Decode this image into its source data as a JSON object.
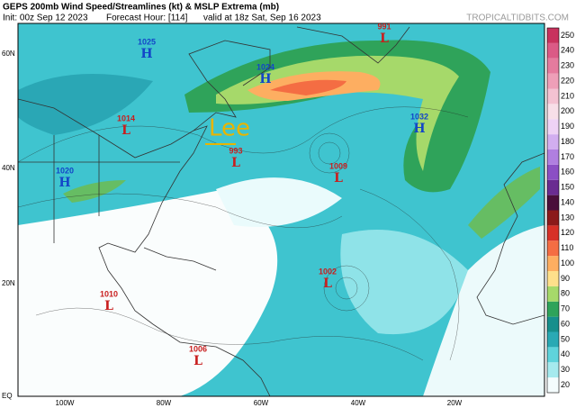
{
  "header": {
    "title": "GEPS 200mb Wind Speed/Streamlines (kt) & MSLP Extrema (mb)",
    "init": "Init: 00z Sep 12 2023",
    "forecast_hour": "Forecast Hour: [114]",
    "valid": "valid at 18z Sat, Sep 16 2023",
    "site": "TROPICALTIDBITS.COM"
  },
  "annotation": "Lee",
  "latitude_labels": [
    "60N",
    "40N",
    "20N",
    "EQ"
  ],
  "longitude_labels": [
    "100W",
    "80W",
    "60W",
    "40W",
    "20W"
  ],
  "colorbar": {
    "ticks": [
      20,
      30,
      40,
      50,
      60,
      70,
      80,
      90,
      100,
      110,
      120,
      130,
      140,
      150,
      160,
      170,
      180,
      190,
      200,
      210,
      220,
      230,
      240,
      250
    ]
  },
  "pressure_centers": [
    {
      "label": "H",
      "value": 1025
    },
    {
      "label": "H",
      "value": 1024
    },
    {
      "label": "L",
      "value": 1014
    },
    {
      "label": "L",
      "value": 993
    },
    {
      "label": "H",
      "value": 1032
    },
    {
      "label": "L",
      "value": 1009
    },
    {
      "label": "H",
      "value": 1020
    },
    {
      "label": "L",
      "value": 991
    },
    {
      "label": "L",
      "value": 1002
    },
    {
      "label": "L",
      "value": 1010
    },
    {
      "label": "L",
      "value": 1006
    }
  ]
}
